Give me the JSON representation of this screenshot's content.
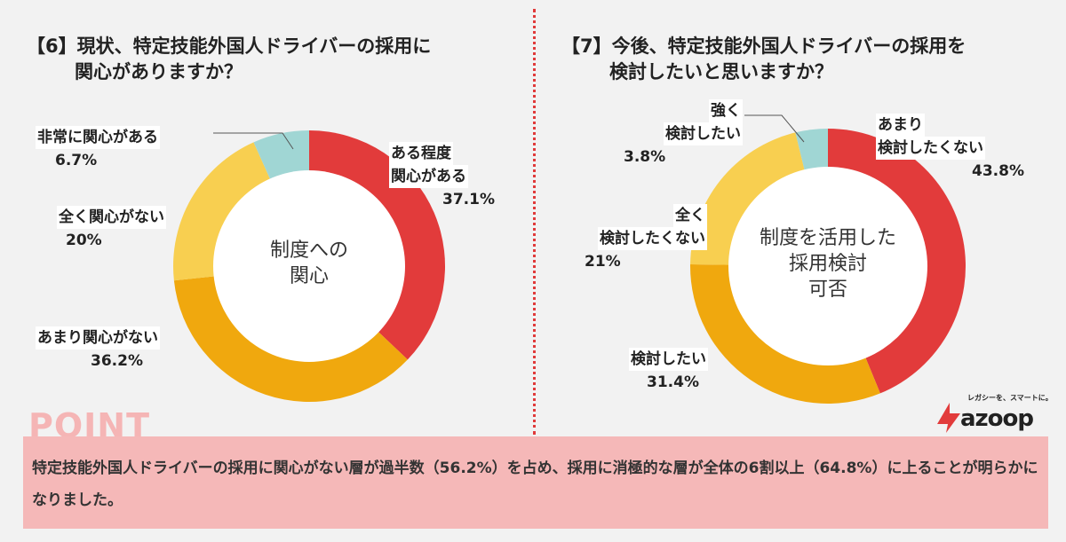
{
  "chart_data": [
    {
      "type": "pie",
      "title_lines": [
        "【6】現状、特定技能外国人ドライバーの採用に",
        "関心がありますか？"
      ],
      "center_lines": [
        "制度への",
        "関心"
      ],
      "slices": [
        {
          "label_lines": [
            "ある程度",
            "関心がある"
          ],
          "value_text": "37.1%",
          "value": 37.1,
          "color": "#e23b3b"
        },
        {
          "label_lines": [
            "あまり関心がない"
          ],
          "value_text": "36.2%",
          "value": 36.2,
          "color": "#f0a80e"
        },
        {
          "label_lines": [
            "全く関心がない"
          ],
          "value_text": "20%",
          "value": 20,
          "color": "#f8cf50"
        },
        {
          "label_lines": [
            "非常に関心がある"
          ],
          "value_text": "6.7%",
          "value": 6.7,
          "color": "#a0d6d4"
        }
      ]
    },
    {
      "type": "pie",
      "title_lines": [
        "【7】今後、特定技能外国人ドライバーの採用を",
        "検討したいと思いますか？"
      ],
      "center_lines": [
        "制度を活用した",
        "採用検討",
        "可否"
      ],
      "slices": [
        {
          "label_lines": [
            "あまり",
            "検討したくない"
          ],
          "value_text": "43.8%",
          "value": 43.8,
          "color": "#e23b3b"
        },
        {
          "label_lines": [
            "検討したい"
          ],
          "value_text": "31.4%",
          "value": 31.4,
          "color": "#f0a80e"
        },
        {
          "label_lines": [
            "全く",
            "検討したくない"
          ],
          "value_text": "21%",
          "value": 21,
          "color": "#f8cf50"
        },
        {
          "label_lines": [
            "強く",
            "検討したい"
          ],
          "value_text": "3.8%",
          "value": 3.8,
          "color": "#a0d6d4"
        }
      ]
    }
  ],
  "point": {
    "heading": "POINT",
    "text": "特定技能外国人ドライバーの採用に関心がない層が過半数（56.2%）を占め、採用に消極的な層が全体の6割以上（64.8%）に上ることが明らかになりました。"
  },
  "logo": {
    "tagline": "レガシーを、スマートに。",
    "name": "azoop"
  }
}
